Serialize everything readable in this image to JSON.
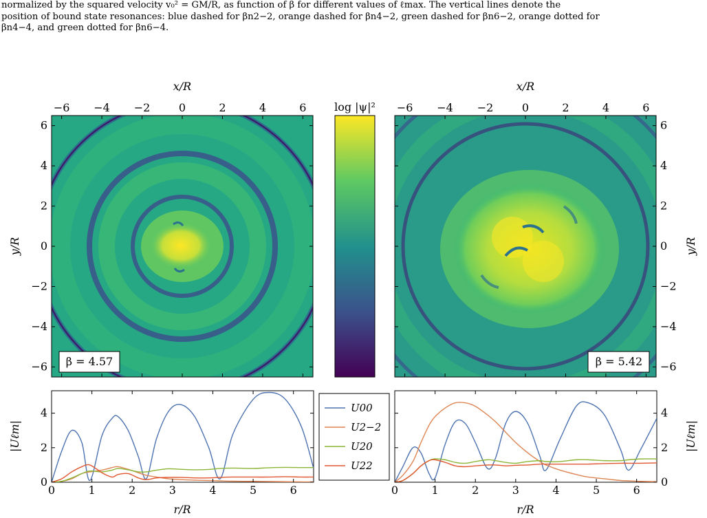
{
  "caption": {
    "lines": [
      "normalized by the squared velocity v₀² = GM/R, as function of β for different values of ℓmax. The vertical lines denote the",
      "position of bound state resonances: blue dashed for βn2−2, orange dashed for βn4−2, green dashed for βn6−2, orange dotted for",
      "βn4−4, and green dotted for βn6−4."
    ]
  },
  "figure": {
    "top_axis_label": "x/R",
    "side_axis_label": "y/R",
    "xy_ticks": [
      "−6",
      "−4",
      "−2",
      "0",
      "2",
      "4",
      "6"
    ],
    "xy_tick_values": [
      -6,
      -4,
      -2,
      0,
      2,
      4,
      6
    ],
    "colorbar_label": "log |ψ|²",
    "colormap": [
      "#440154",
      "#3b528b",
      "#21918c",
      "#5ec962",
      "#fde725"
    ],
    "panels": [
      {
        "beta_label": "β = 4.57"
      },
      {
        "beta_label": "β = 5.42"
      }
    ]
  },
  "chart_data": [
    {
      "type": "line",
      "panel": "bottom-left",
      "xlabel": "r/R",
      "ylabel": "|Uℓm|",
      "xlim": [
        0,
        6.5
      ],
      "ylim": [
        0,
        5.3
      ],
      "x_ticks": [
        "0",
        "1",
        "2",
        "3",
        "4",
        "5",
        "6"
      ],
      "y_ticks": [
        "0",
        "2",
        "4"
      ],
      "x": [
        0,
        0.25,
        0.5,
        0.75,
        0.95,
        1.25,
        1.5,
        1.65,
        1.9,
        2.15,
        2.35,
        2.6,
        2.9,
        3.2,
        3.55,
        3.9,
        4.18,
        4.5,
        5.0,
        5.4,
        5.8,
        6.2,
        6.5
      ],
      "series": [
        {
          "name": "U00",
          "color": "#4c72b0",
          "values": [
            0,
            1.8,
            3.0,
            2.3,
            0.1,
            2.7,
            3.7,
            3.8,
            3.0,
            1.5,
            0.2,
            2.5,
            4.1,
            4.5,
            3.8,
            2.0,
            0.2,
            2.8,
            4.8,
            5.2,
            4.8,
            3.2,
            0.8
          ]
        },
        {
          "name": "U2−2",
          "color": "#dd8452",
          "values": [
            0,
            0.05,
            0.2,
            0.5,
            0.6,
            0.7,
            0.85,
            0.9,
            0.75,
            0.55,
            0.4,
            0.3,
            0.2,
            0.15,
            0.12,
            0.1,
            0.08,
            0.06,
            0.05,
            0.04,
            0.03,
            0.02,
            0.02
          ]
        },
        {
          "name": "U20",
          "color": "#8bb635",
          "values": [
            0,
            0.05,
            0.25,
            0.5,
            0.65,
            0.6,
            0.7,
            0.8,
            0.72,
            0.6,
            0.6,
            0.7,
            0.78,
            0.75,
            0.72,
            0.74,
            0.8,
            0.82,
            0.8,
            0.84,
            0.86,
            0.85,
            0.85
          ]
        },
        {
          "name": "U22",
          "color": "#e0552e",
          "values": [
            0,
            0.2,
            0.6,
            0.9,
            1.0,
            0.55,
            0.3,
            0.45,
            0.5,
            0.25,
            0.15,
            0.25,
            0.28,
            0.28,
            0.25,
            0.25,
            0.28,
            0.3,
            0.3,
            0.3,
            0.32,
            0.3,
            0.3
          ]
        }
      ]
    },
    {
      "type": "line",
      "panel": "bottom-right",
      "xlabel": "r/R",
      "ylabel": "|Uℓm|",
      "xlim": [
        0,
        6.5
      ],
      "ylim": [
        0,
        5.3
      ],
      "x_ticks": [
        "0",
        "1",
        "2",
        "3",
        "4",
        "5",
        "6"
      ],
      "y_ticks": [
        "0",
        "2",
        "4"
      ],
      "x": [
        0,
        0.2,
        0.45,
        0.65,
        0.85,
        1.0,
        1.25,
        1.5,
        1.75,
        2.0,
        2.3,
        2.5,
        2.75,
        3.0,
        3.3,
        3.6,
        3.75,
        4.1,
        4.5,
        4.8,
        5.2,
        5.6,
        5.8,
        6.1,
        6.5
      ],
      "series": [
        {
          "name": "U00",
          "color": "#4c72b0",
          "values": [
            0,
            0.9,
            2.0,
            1.7,
            0.5,
            0.25,
            2.2,
            3.5,
            3.4,
            2.3,
            0.8,
            1.4,
            3.4,
            4.1,
            3.4,
            1.5,
            0.7,
            2.5,
            4.4,
            4.6,
            3.9,
            1.9,
            0.7,
            1.9,
            3.7
          ]
        },
        {
          "name": "U2−2",
          "color": "#dd8452",
          "values": [
            0,
            0.4,
            1.2,
            2.3,
            3.3,
            3.8,
            4.3,
            4.6,
            4.6,
            4.4,
            3.9,
            3.5,
            2.9,
            2.3,
            1.7,
            1.2,
            1.0,
            0.7,
            0.45,
            0.3,
            0.2,
            0.1,
            0.08,
            0.05,
            0.03
          ]
        },
        {
          "name": "U20",
          "color": "#8bb635",
          "values": [
            0,
            0.1,
            0.5,
            0.95,
            1.25,
            1.35,
            1.3,
            1.15,
            1.1,
            1.2,
            1.3,
            1.25,
            1.15,
            1.1,
            1.2,
            1.25,
            1.2,
            1.2,
            1.3,
            1.3,
            1.25,
            1.25,
            1.3,
            1.35,
            1.35
          ]
        },
        {
          "name": "U22",
          "color": "#e0552e",
          "values": [
            0,
            0.1,
            0.5,
            0.95,
            1.25,
            1.3,
            1.15,
            0.95,
            0.9,
            0.95,
            1.0,
            1.0,
            0.95,
            0.98,
            1.0,
            1.05,
            1.05,
            1.05,
            1.05,
            1.05,
            1.08,
            1.1,
            1.1,
            1.1,
            1.12
          ]
        }
      ]
    }
  ]
}
